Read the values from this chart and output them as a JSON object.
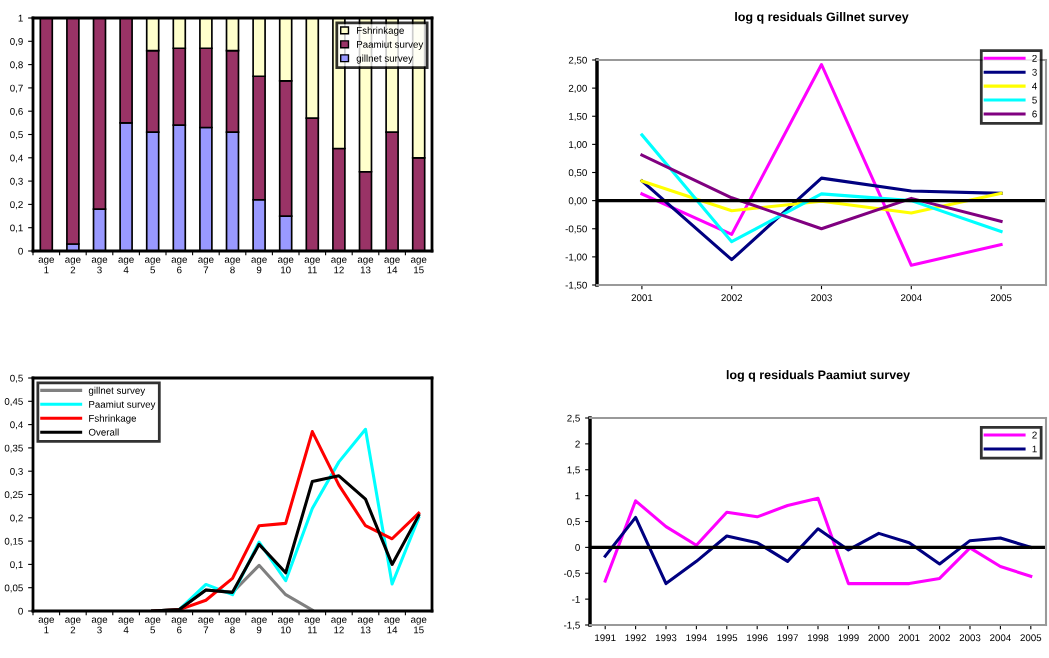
{
  "chart_data": [
    {
      "type": "bar",
      "stacked": true,
      "categories": [
        "age 1",
        "age 2",
        "age 3",
        "age 4",
        "age 5",
        "age 6",
        "age 7",
        "age 8",
        "age 9",
        "age 10",
        "age 11",
        "age 12",
        "age 13",
        "age 14",
        "age 15"
      ],
      "series": [
        {
          "name": "gillnet survey",
          "color": "#9999ff",
          "values": [
            0,
            0.03,
            0.18,
            0.55,
            0.51,
            0.54,
            0.53,
            0.51,
            0.22,
            0.15,
            0,
            0,
            0,
            0,
            0
          ]
        },
        {
          "name": "Paamiut survey",
          "color": "#993366",
          "values": [
            1,
            0.97,
            0.82,
            0.45,
            0.35,
            0.33,
            0.34,
            0.35,
            0.53,
            0.58,
            0.57,
            0.44,
            0.34,
            0.51,
            0.4
          ]
        },
        {
          "name": "Fshrinkage",
          "color": "#ffffcc",
          "values": [
            0,
            0,
            0,
            0,
            0.14,
            0.13,
            0.13,
            0.14,
            0.25,
            0.27,
            0.43,
            0.56,
            0.66,
            0.49,
            0.6
          ]
        }
      ],
      "ylim": [
        0,
        1
      ],
      "yticks": [
        0,
        {
          "value": 0.1,
          "label": "0,1"
        },
        {
          "value": 0.2,
          "label": "0,2"
        },
        {
          "value": 0.3,
          "label": "0,3"
        },
        {
          "value": 0.4,
          "label": "0,4"
        },
        {
          "value": 0.5,
          "label": "0,5"
        },
        {
          "value": 0.6,
          "label": "0,6"
        },
        {
          "value": 0.7,
          "label": "0,7"
        },
        {
          "value": 0.8,
          "label": "0,8"
        },
        {
          "value": 0.9,
          "label": "0,9"
        },
        1
      ],
      "legend": "top right",
      "grid": false
    },
    {
      "type": "line",
      "title": "log q residuals Gillnet survey",
      "categories": [
        "2001",
        "2002",
        "2003",
        "2004",
        "2005"
      ],
      "series": [
        {
          "name": "2",
          "color": "#ff00ff",
          "values": [
            0.12,
            -0.6,
            2.42,
            -1.15,
            -0.78
          ]
        },
        {
          "name": "3",
          "color": "#000080",
          "values": [
            0.35,
            -1.05,
            0.4,
            0.17,
            0.13
          ]
        },
        {
          "name": "4",
          "color": "#ffff00",
          "values": [
            0.35,
            -0.18,
            -0.01,
            -0.22,
            0.13
          ]
        },
        {
          "name": "5",
          "color": "#00ffff",
          "values": [
            1.17,
            -0.73,
            0.12,
            0.0,
            -0.55
          ]
        },
        {
          "name": "6",
          "color": "#800080",
          "values": [
            0.81,
            0.05,
            -0.5,
            0.04,
            -0.37
          ]
        }
      ],
      "ylim": [
        -1.5,
        2.5
      ],
      "yticks": [
        {
          "value": -1.5,
          "label": "-1,50"
        },
        {
          "value": -1,
          "label": "-1,00"
        },
        {
          "value": -0.5,
          "label": "-0,50"
        },
        {
          "value": 0,
          "label": "0,00"
        },
        {
          "value": 0.5,
          "label": "0,50"
        },
        {
          "value": 1,
          "label": "1,00"
        },
        {
          "value": 1.5,
          "label": "1,50"
        },
        {
          "value": 2,
          "label": "2,00"
        },
        {
          "value": 2.5,
          "label": "2,50"
        }
      ],
      "ref_lines": [
        {
          "axis": "y",
          "value": 0
        }
      ],
      "legend": "right",
      "grid": false,
      "marker": "none",
      "line_style": "solid"
    },
    {
      "type": "line",
      "categories": [
        "age 1",
        "age 2",
        "age 3",
        "age 4",
        "age 5",
        "age 6",
        "age 7",
        "age 8",
        "age 9",
        "age 10",
        "age 11",
        "age 12",
        "age 13",
        "age 14",
        "age 15"
      ],
      "series": [
        {
          "name": "gillnet survey",
          "color": "#808080",
          "values": [
            null,
            null,
            null,
            null,
            0,
            0.003,
            0.045,
            0.04,
            0.098,
            0.035,
            0.002,
            null,
            null,
            null,
            null
          ]
        },
        {
          "name": "Paamiut survey",
          "color": "#00ffff",
          "values": [
            null,
            null,
            null,
            null,
            0,
            0.003,
            0.057,
            0.035,
            0.148,
            0.065,
            0.22,
            0.32,
            0.39,
            0.058,
            0.2
          ]
        },
        {
          "name": "Fshrinkage",
          "color": "#ff0000",
          "values": [
            null,
            null,
            null,
            null,
            0,
            0.003,
            0.023,
            0.07,
            0.183,
            0.188,
            0.385,
            0.27,
            0.183,
            0.155,
            0.21
          ]
        },
        {
          "name": "Overall",
          "color": "#000000",
          "values": [
            null,
            null,
            null,
            null,
            0,
            0.003,
            0.045,
            0.04,
            0.143,
            0.082,
            0.278,
            0.29,
            0.24,
            0.1,
            0.205
          ]
        }
      ],
      "ylim": [
        0,
        0.5
      ],
      "yticks": [
        0,
        {
          "value": 0.05,
          "label": "0,05"
        },
        {
          "value": 0.1,
          "label": "0,1"
        },
        {
          "value": 0.15,
          "label": "0,15"
        },
        {
          "value": 0.2,
          "label": "0,2"
        },
        {
          "value": 0.25,
          "label": "0,25"
        },
        {
          "value": 0.3,
          "label": "0,3"
        },
        {
          "value": 0.35,
          "label": "0,35"
        },
        {
          "value": 0.4,
          "label": "0,4"
        },
        {
          "value": 0.45,
          "label": "0,45"
        },
        {
          "value": 0.5,
          "label": "0,5"
        }
      ],
      "legend": "top left",
      "grid": false,
      "marker": "none",
      "line_style": "solid"
    },
    {
      "type": "line",
      "title": "log q residuals Paamiut survey",
      "categories": [
        "1991",
        "1992",
        "1993",
        "1994",
        "1995",
        "1996",
        "1997",
        "1998",
        "1999",
        "2000",
        "2001",
        "2002",
        "2003",
        "2004",
        "2005"
      ],
      "series": [
        {
          "name": "2",
          "color": "#ff00ff",
          "values": [
            -0.65,
            0.9,
            0.4,
            0.04,
            0.68,
            0.59,
            0.81,
            0.95,
            -0.7,
            -0.7,
            -0.7,
            -0.6,
            -0.01,
            -0.37,
            -0.56
          ]
        },
        {
          "name": "1",
          "color": "#000080",
          "values": [
            -0.17,
            0.58,
            -0.7,
            -0.27,
            0.22,
            0.09,
            -0.27,
            0.36,
            -0.05,
            0.27,
            0.09,
            -0.32,
            0.13,
            0.18,
            0.0
          ]
        }
      ],
      "ylim": [
        -1.5,
        2.5
      ],
      "yticks": [
        {
          "value": -1.5,
          "label": "-1,5"
        },
        -1,
        {
          "value": -0.5,
          "label": "-0,5"
        },
        0,
        {
          "value": 0.5,
          "label": "0,5"
        },
        1,
        {
          "value": 1.5,
          "label": "1,5"
        },
        2,
        {
          "value": 2.5,
          "label": "2,5"
        }
      ],
      "ref_lines": [
        {
          "axis": "y",
          "value": 0
        }
      ],
      "legend": "right",
      "grid": false,
      "marker": "none",
      "line_style": "solid"
    }
  ]
}
